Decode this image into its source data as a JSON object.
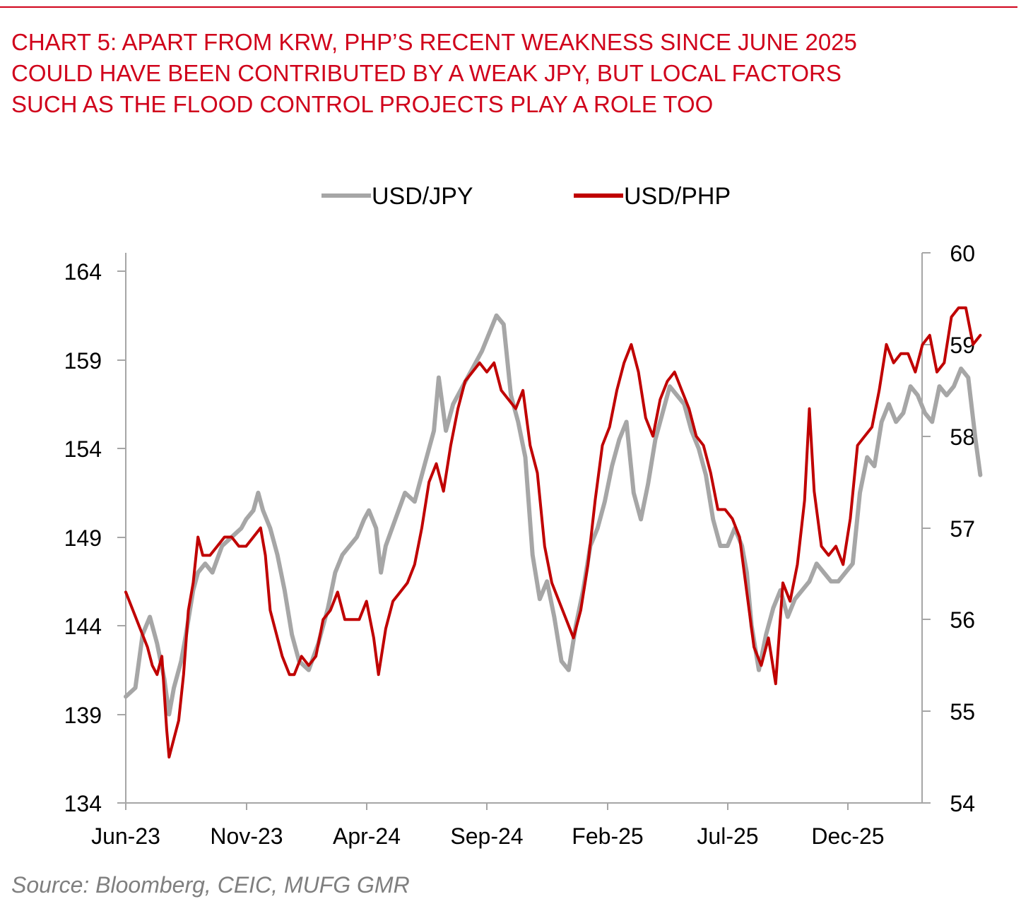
{
  "title_lines": [
    "CHART 5: APART FROM KRW, PHP’S RECENT WEAKNESS SINCE JUNE 2025",
    "COULD HAVE BEEN CONTRIBUTED BY A WEAK JPY, BUT LOCAL FACTORS",
    "SUCH AS THE FLOOD CONTROL PROJECTS PLAY A ROLE TOO"
  ],
  "source": "Source: Bloomberg, CEIC, MUFG GMR",
  "colors": {
    "title": "#d0021b",
    "jpy": "#a6a6a6",
    "php": "#c00000",
    "axis": "#a6a6a6",
    "source": "#7f7f7f"
  },
  "chart_data": {
    "type": "line",
    "title": "CHART 5: APART FROM KRW, PHP’S RECENT WEAKNESS SINCE JUNE 2025 COULD HAVE BEEN CONTRIBUTED BY A WEAK JPY, BUT LOCAL FACTORS SUCH AS THE FLOOD CONTROL PROJECTS PLAY A ROLE TOO",
    "xlabel": "",
    "x_ticks": [
      "Jun-23",
      "Nov-23",
      "Apr-24",
      "Sep-24",
      "Feb-25",
      "Jul-25",
      "Dec-25"
    ],
    "x_range_months": [
      0,
      32.5
    ],
    "y_left": {
      "label": "USD/JPY",
      "range": [
        134,
        164
      ],
      "ticks": [
        "164",
        "159",
        "154",
        "149",
        "144",
        "139",
        "134"
      ]
    },
    "y_right": {
      "label": "USD/PHP",
      "range": [
        54,
        60
      ],
      "ticks": [
        "60",
        "59",
        "58",
        "57",
        "56",
        "55",
        "54"
      ]
    },
    "legend_position": "top-center",
    "series": [
      {
        "name": "USD/JPY",
        "axis": "left",
        "color": "#a6a6a6",
        "points": [
          [
            0.0,
            140.0
          ],
          [
            0.4,
            140.5
          ],
          [
            0.7,
            143.5
          ],
          [
            1.0,
            144.5
          ],
          [
            1.3,
            143.0
          ],
          [
            1.6,
            141.0
          ],
          [
            1.8,
            139.0
          ],
          [
            2.0,
            140.5
          ],
          [
            2.3,
            142.0
          ],
          [
            2.5,
            143.5
          ],
          [
            2.8,
            146.0
          ],
          [
            3.0,
            147.0
          ],
          [
            3.3,
            147.5
          ],
          [
            3.6,
            147.0
          ],
          [
            4.0,
            148.5
          ],
          [
            4.4,
            149.0
          ],
          [
            4.8,
            149.5
          ],
          [
            5.0,
            150.0
          ],
          [
            5.3,
            150.5
          ],
          [
            5.5,
            151.5
          ],
          [
            5.7,
            150.5
          ],
          [
            6.0,
            149.5
          ],
          [
            6.3,
            148.0
          ],
          [
            6.6,
            146.0
          ],
          [
            6.9,
            143.5
          ],
          [
            7.2,
            142.0
          ],
          [
            7.6,
            141.5
          ],
          [
            8.0,
            143.0
          ],
          [
            8.4,
            145.0
          ],
          [
            8.7,
            147.0
          ],
          [
            9.0,
            148.0
          ],
          [
            9.3,
            148.5
          ],
          [
            9.6,
            149.0
          ],
          [
            9.9,
            150.0
          ],
          [
            10.1,
            150.5
          ],
          [
            10.4,
            149.5
          ],
          [
            10.6,
            147.0
          ],
          [
            10.8,
            148.5
          ],
          [
            11.2,
            150.0
          ],
          [
            11.6,
            151.5
          ],
          [
            12.0,
            151.0
          ],
          [
            12.4,
            153.0
          ],
          [
            12.8,
            155.0
          ],
          [
            13.0,
            158.0
          ],
          [
            13.3,
            155.0
          ],
          [
            13.6,
            156.5
          ],
          [
            14.0,
            157.5
          ],
          [
            14.4,
            158.5
          ],
          [
            14.8,
            159.5
          ],
          [
            15.1,
            160.5
          ],
          [
            15.4,
            161.5
          ],
          [
            15.7,
            161.0
          ],
          [
            16.0,
            157.0
          ],
          [
            16.3,
            155.5
          ],
          [
            16.6,
            153.5
          ],
          [
            16.9,
            148.0
          ],
          [
            17.2,
            145.5
          ],
          [
            17.5,
            146.5
          ],
          [
            17.8,
            144.5
          ],
          [
            18.1,
            142.0
          ],
          [
            18.4,
            141.5
          ],
          [
            18.7,
            144.0
          ],
          [
            19.0,
            146.0
          ],
          [
            19.3,
            148.5
          ],
          [
            19.6,
            149.5
          ],
          [
            19.9,
            151.0
          ],
          [
            20.2,
            153.0
          ],
          [
            20.5,
            154.5
          ],
          [
            20.8,
            155.5
          ],
          [
            21.1,
            151.5
          ],
          [
            21.4,
            150.0
          ],
          [
            21.7,
            152.0
          ],
          [
            22.0,
            154.5
          ],
          [
            22.3,
            156.0
          ],
          [
            22.6,
            157.5
          ],
          [
            22.9,
            157.0
          ],
          [
            23.2,
            156.5
          ],
          [
            23.5,
            155.0
          ],
          [
            23.8,
            154.0
          ],
          [
            24.1,
            152.5
          ],
          [
            24.4,
            150.0
          ],
          [
            24.7,
            148.5
          ],
          [
            25.0,
            148.5
          ],
          [
            25.3,
            149.5
          ],
          [
            25.6,
            148.5
          ],
          [
            25.8,
            147.0
          ],
          [
            26.0,
            144.0
          ],
          [
            26.3,
            141.5
          ],
          [
            26.6,
            143.5
          ],
          [
            26.9,
            145.0
          ],
          [
            27.2,
            146.0
          ],
          [
            27.5,
            144.5
          ],
          [
            27.8,
            145.5
          ],
          [
            28.1,
            146.0
          ],
          [
            28.4,
            146.5
          ],
          [
            28.7,
            147.5
          ],
          [
            29.0,
            147.0
          ],
          [
            29.3,
            146.5
          ],
          [
            29.6,
            146.5
          ],
          [
            29.9,
            147.0
          ],
          [
            30.2,
            147.5
          ],
          [
            30.5,
            151.5
          ],
          [
            30.8,
            153.5
          ],
          [
            31.1,
            153.0
          ],
          [
            31.4,
            155.5
          ],
          [
            31.7,
            156.5
          ],
          [
            32.0,
            155.5
          ],
          [
            32.3,
            156.0
          ],
          [
            32.6,
            157.5
          ],
          [
            32.9,
            157.0
          ],
          [
            33.2,
            156.0
          ],
          [
            33.5,
            155.5
          ],
          [
            33.8,
            157.5
          ],
          [
            34.1,
            157.0
          ],
          [
            34.4,
            157.5
          ],
          [
            34.7,
            158.5
          ],
          [
            35.0,
            158.0
          ],
          [
            35.3,
            154.5
          ],
          [
            35.5,
            152.5
          ]
        ]
      },
      {
        "name": "USD/PHP",
        "axis": "right",
        "color": "#c00000",
        "points": [
          [
            0.0,
            56.3
          ],
          [
            0.3,
            56.1
          ],
          [
            0.6,
            55.9
          ],
          [
            0.9,
            55.7
          ],
          [
            1.1,
            55.5
          ],
          [
            1.3,
            55.4
          ],
          [
            1.5,
            55.6
          ],
          [
            1.7,
            54.8
          ],
          [
            1.8,
            54.5
          ],
          [
            2.0,
            54.7
          ],
          [
            2.2,
            54.9
          ],
          [
            2.4,
            55.4
          ],
          [
            2.6,
            56.1
          ],
          [
            2.8,
            56.4
          ],
          [
            3.0,
            56.9
          ],
          [
            3.2,
            56.7
          ],
          [
            3.5,
            56.7
          ],
          [
            3.8,
            56.8
          ],
          [
            4.1,
            56.9
          ],
          [
            4.4,
            56.9
          ],
          [
            4.7,
            56.8
          ],
          [
            5.0,
            56.8
          ],
          [
            5.3,
            56.9
          ],
          [
            5.6,
            57.0
          ],
          [
            5.8,
            56.7
          ],
          [
            6.0,
            56.1
          ],
          [
            6.2,
            55.9
          ],
          [
            6.5,
            55.6
          ],
          [
            6.8,
            55.4
          ],
          [
            7.0,
            55.4
          ],
          [
            7.3,
            55.6
          ],
          [
            7.6,
            55.5
          ],
          [
            7.9,
            55.6
          ],
          [
            8.2,
            56.0
          ],
          [
            8.5,
            56.1
          ],
          [
            8.8,
            56.3
          ],
          [
            9.1,
            56.0
          ],
          [
            9.4,
            56.0
          ],
          [
            9.7,
            56.0
          ],
          [
            10.0,
            56.2
          ],
          [
            10.3,
            55.8
          ],
          [
            10.5,
            55.4
          ],
          [
            10.8,
            55.9
          ],
          [
            11.1,
            56.2
          ],
          [
            11.4,
            56.3
          ],
          [
            11.7,
            56.4
          ],
          [
            12.0,
            56.6
          ],
          [
            12.3,
            57.0
          ],
          [
            12.6,
            57.5
          ],
          [
            12.9,
            57.7
          ],
          [
            13.2,
            57.4
          ],
          [
            13.5,
            57.9
          ],
          [
            13.8,
            58.3
          ],
          [
            14.1,
            58.6
          ],
          [
            14.4,
            58.7
          ],
          [
            14.7,
            58.8
          ],
          [
            15.0,
            58.7
          ],
          [
            15.3,
            58.8
          ],
          [
            15.6,
            58.5
          ],
          [
            15.9,
            58.4
          ],
          [
            16.2,
            58.3
          ],
          [
            16.5,
            58.5
          ],
          [
            16.8,
            57.9
          ],
          [
            17.1,
            57.6
          ],
          [
            17.4,
            56.8
          ],
          [
            17.7,
            56.4
          ],
          [
            18.0,
            56.2
          ],
          [
            18.3,
            56.0
          ],
          [
            18.6,
            55.8
          ],
          [
            18.9,
            56.1
          ],
          [
            19.2,
            56.6
          ],
          [
            19.5,
            57.3
          ],
          [
            19.8,
            57.9
          ],
          [
            20.1,
            58.1
          ],
          [
            20.4,
            58.5
          ],
          [
            20.7,
            58.8
          ],
          [
            21.0,
            59.0
          ],
          [
            21.3,
            58.7
          ],
          [
            21.6,
            58.2
          ],
          [
            21.9,
            58.0
          ],
          [
            22.2,
            58.4
          ],
          [
            22.5,
            58.6
          ],
          [
            22.8,
            58.7
          ],
          [
            23.1,
            58.5
          ],
          [
            23.4,
            58.3
          ],
          [
            23.7,
            58.0
          ],
          [
            24.0,
            57.9
          ],
          [
            24.3,
            57.6
          ],
          [
            24.6,
            57.2
          ],
          [
            24.9,
            57.2
          ],
          [
            25.2,
            57.1
          ],
          [
            25.5,
            56.9
          ],
          [
            25.8,
            56.3
          ],
          [
            26.1,
            55.7
          ],
          [
            26.4,
            55.5
          ],
          [
            26.7,
            55.8
          ],
          [
            27.0,
            55.3
          ],
          [
            27.3,
            56.4
          ],
          [
            27.6,
            56.2
          ],
          [
            27.9,
            56.6
          ],
          [
            28.2,
            57.3
          ],
          [
            28.4,
            58.3
          ],
          [
            28.6,
            57.4
          ],
          [
            28.9,
            56.8
          ],
          [
            29.2,
            56.7
          ],
          [
            29.5,
            56.8
          ],
          [
            29.8,
            56.6
          ],
          [
            30.1,
            57.1
          ],
          [
            30.4,
            57.9
          ],
          [
            30.7,
            58.0
          ],
          [
            31.0,
            58.1
          ],
          [
            31.3,
            58.5
          ],
          [
            31.6,
            59.0
          ],
          [
            31.9,
            58.8
          ],
          [
            32.2,
            58.9
          ],
          [
            32.5,
            58.9
          ],
          [
            32.8,
            58.7
          ],
          [
            33.1,
            59.0
          ],
          [
            33.4,
            59.1
          ],
          [
            33.7,
            58.7
          ],
          [
            34.0,
            58.8
          ],
          [
            34.3,
            59.3
          ],
          [
            34.6,
            59.4
          ],
          [
            34.9,
            59.4
          ],
          [
            35.2,
            59.0
          ],
          [
            35.5,
            59.1
          ]
        ]
      }
    ]
  }
}
